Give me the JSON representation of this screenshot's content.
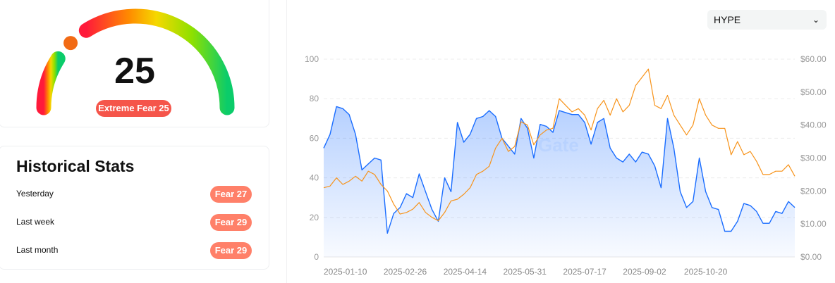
{
  "gauge": {
    "value": "25",
    "value_num": 25,
    "badge": "Extreme Fear 25",
    "colors": {
      "start": "#ff1a3a",
      "orange": "#ff8a00",
      "yellow": "#f5d800",
      "lime": "#8ee000",
      "end": "#0bcc6a",
      "knob": "#f26a14",
      "badge": "#f5554a"
    }
  },
  "stats": {
    "title": "Historical Stats",
    "rows": [
      {
        "label": "Yesterday",
        "badge": "Fear 27"
      },
      {
        "label": "Last week",
        "badge": "Fear 29"
      },
      {
        "label": "Last month",
        "badge": "Fear 29"
      }
    ],
    "badge_color": "#ff8069"
  },
  "selector": {
    "value": "HYPE",
    "icon": "chevron-down-icon"
  },
  "chart_data": {
    "type": "line",
    "watermark": "Gate",
    "grid": true,
    "y_left": {
      "range": [
        0,
        100
      ],
      "ticks": [
        "0",
        "20",
        "40",
        "60",
        "80",
        "100"
      ]
    },
    "y_right": {
      "range": [
        0,
        60
      ],
      "ticks": [
        "$0.00",
        "$10.00",
        "$20.00",
        "$30.00",
        "$40.00",
        "$50.00",
        "$60.00"
      ]
    },
    "x_ticks": [
      "2025-01-10",
      "2025-02-26",
      "2025-04-14",
      "2025-05-31",
      "2025-07-17",
      "2025-09-02",
      "2025-10-20"
    ],
    "x": [
      "2024-12-24",
      "2024-12-29",
      "2025-01-03",
      "2025-01-08",
      "2025-01-13",
      "2025-01-18",
      "2025-01-23",
      "2025-01-28",
      "2025-02-02",
      "2025-02-07",
      "2025-02-12",
      "2025-02-17",
      "2025-02-22",
      "2025-02-27",
      "2025-03-04",
      "2025-03-09",
      "2025-03-14",
      "2025-03-19",
      "2025-03-24",
      "2025-03-29",
      "2025-04-03",
      "2025-04-08",
      "2025-04-13",
      "2025-04-18",
      "2025-04-23",
      "2025-04-28",
      "2025-05-03",
      "2025-05-08",
      "2025-05-13",
      "2025-05-18",
      "2025-05-23",
      "2025-05-28",
      "2025-06-02",
      "2025-06-07",
      "2025-06-12",
      "2025-06-17",
      "2025-06-22",
      "2025-06-27",
      "2025-07-02",
      "2025-07-07",
      "2025-07-12",
      "2025-07-17",
      "2025-07-22",
      "2025-07-27",
      "2025-08-01",
      "2025-08-06",
      "2025-08-11",
      "2025-08-16",
      "2025-08-21",
      "2025-08-26",
      "2025-08-31",
      "2025-09-05",
      "2025-09-10",
      "2025-09-15",
      "2025-09-20",
      "2025-09-25",
      "2025-09-30",
      "2025-10-05",
      "2025-10-10",
      "2025-10-15",
      "2025-10-20",
      "2025-10-25",
      "2025-10-30",
      "2025-11-04",
      "2025-11-09",
      "2025-11-14",
      "2025-11-19",
      "2025-11-24",
      "2025-11-29",
      "2025-12-04",
      "2025-12-09",
      "2025-12-14",
      "2025-12-19",
      "2025-12-24",
      "2025-12-29"
    ],
    "series": [
      {
        "axis": "left",
        "color": "#1a6dff",
        "fill": true,
        "values": [
          55,
          62,
          76,
          75,
          72,
          62,
          44,
          47,
          50,
          49,
          12,
          22,
          25,
          32,
          30,
          42,
          33,
          24,
          18,
          40,
          33,
          68,
          58,
          62,
          70,
          71,
          74,
          71,
          60,
          56,
          52,
          70,
          65,
          50,
          67,
          66,
          63,
          74,
          73,
          72,
          72,
          68,
          57,
          68,
          70,
          55,
          50,
          48,
          52,
          48,
          53,
          52,
          46,
          35,
          70,
          55,
          33,
          25,
          28,
          50,
          33,
          25,
          24,
          13,
          13,
          18,
          27,
          26,
          23,
          17,
          17,
          23,
          22,
          28,
          25
        ]
      },
      {
        "axis": "right",
        "color": "#f7931a",
        "fill": false,
        "values": [
          21,
          21.5,
          24,
          22,
          23,
          24.5,
          23,
          26,
          25,
          22,
          20,
          16,
          13,
          13.5,
          14.5,
          16.5,
          13.5,
          12,
          11,
          13.5,
          17,
          17.5,
          19,
          21,
          25,
          26,
          27.5,
          33,
          36,
          32,
          33.5,
          41,
          40,
          34,
          37,
          38.5,
          39,
          48,
          46,
          44,
          45,
          43,
          38.5,
          45,
          47.5,
          43,
          48,
          44,
          46,
          52,
          54.5,
          57,
          46,
          45,
          49,
          43,
          40,
          37,
          40,
          48,
          43,
          40,
          39,
          39,
          31,
          35,
          31,
          32,
          29,
          25,
          25,
          26,
          26,
          28,
          24.5
        ]
      }
    ]
  }
}
